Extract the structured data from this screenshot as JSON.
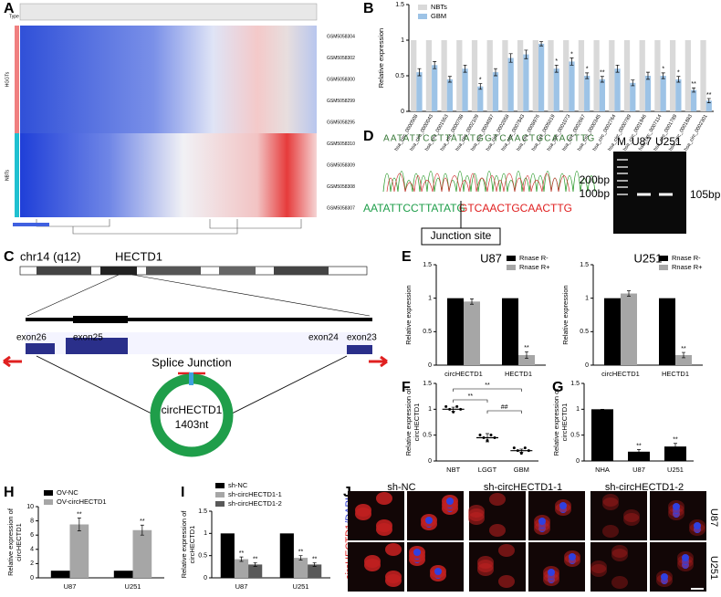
{
  "panels": {
    "labels": [
      "A",
      "B",
      "C",
      "D",
      "E",
      "F",
      "G",
      "H",
      "I",
      "J"
    ]
  },
  "heatmap": {
    "type_label": "Type",
    "groups": [
      "HGGTs",
      "NBTs"
    ],
    "samples": [
      "GSM5058304",
      "GSM5058302",
      "GSM5058300",
      "GSM5058299",
      "GSM5058295",
      "GSM5058310",
      "GSM5058309",
      "GSM5058308",
      "GSM5058307"
    ]
  },
  "sequence": {
    "top": "AATATTCCTTATATGGTCAACTGCAACTTG",
    "left": "AATATTCCTTATATG",
    "right": "GTCAACTGCAACTTG",
    "junction": "Junction site"
  },
  "gel": {
    "lanes": [
      "M",
      "U87",
      "U251"
    ],
    "markers": [
      "200bp",
      "100bp"
    ],
    "product": "105bp"
  },
  "locus": {
    "chromosome": "chr14 (q12)",
    "gene": "HECTD1",
    "exons": [
      "exon26",
      "exon25",
      "exon24",
      "exon23"
    ],
    "splice": "Splice Junction",
    "circ_name": "circHECTD1",
    "circ_length": "1403nt"
  },
  "if": {
    "conditions": [
      "sh-NC",
      "sh-circHECTD1-1",
      "sh-circHECTD1-2"
    ],
    "cells": [
      "U87",
      "U251"
    ],
    "stain": "circHECTD1",
    "stain2": "/DAPI"
  },
  "chart_data": [
    {
      "type": "bar",
      "y_label": [
        "Relative expression"
      ],
      "categories": [
        "hsa_circ_0000508",
        "hsa_circ_0000043",
        "hsa_circ_0001553",
        "hsa_circ_0000798",
        "hsa_circ_0002109",
        "hsa_circ_0004087",
        "hsa_circ_0002058",
        "hsa_circ_0007843",
        "hsa_circ_0008976",
        "hsa_circ_0005019",
        "hsa_circ_0001073",
        "hsa_circ_0002667",
        "hsa_circ_0000345",
        "hsa_circ_0002764",
        "hsa_circ_0000789",
        "hsa_circ_0001946",
        "hsa_circ_0007114",
        "hsa_circ_0001789",
        "hsa_circ_0001883",
        "hsa_circ_0002301"
      ],
      "series": [
        {
          "name": "NBTs",
          "color": "#d9d9d9",
          "values": [
            1,
            1,
            1,
            1,
            1,
            1,
            1,
            1,
            1,
            1,
            1,
            1,
            1,
            1,
            1,
            1,
            1,
            1,
            1,
            1
          ]
        },
        {
          "name": "GBM",
          "color": "#9dc3e6",
          "values": [
            0.55,
            0.65,
            0.45,
            0.6,
            0.35,
            0.55,
            0.75,
            0.8,
            0.95,
            0.6,
            0.7,
            0.5,
            0.45,
            0.6,
            0.4,
            0.5,
            0.5,
            0.45,
            0.3,
            0.15
          ],
          "errors": [
            0.05,
            0.05,
            0.04,
            0.05,
            0.04,
            0.05,
            0.06,
            0.06,
            0.03,
            0.05,
            0.05,
            0.04,
            0.04,
            0.05,
            0.04,
            0.05,
            0.04,
            0.04,
            0.03,
            0.03
          ],
          "significance": [
            null,
            null,
            null,
            null,
            "*",
            null,
            null,
            null,
            null,
            "*",
            "*",
            "*",
            "**",
            null,
            null,
            null,
            "*",
            "*",
            "**",
            "**"
          ]
        }
      ],
      "ylim": [
        0,
        1.5
      ],
      "yticks": [
        0,
        0.5,
        1,
        1.5
      ]
    },
    {
      "type": "bar",
      "title": "U87",
      "y_label": [
        "Relative expression"
      ],
      "categories": [
        "circHECTD1",
        "HECTD1"
      ],
      "series": [
        {
          "name": "Rnase R-",
          "color": "#000000",
          "values": [
            1,
            1
          ]
        },
        {
          "name": "Rnase R+",
          "color": "#a6a6a6",
          "values": [
            0.95,
            0.15
          ],
          "errors": [
            0.04,
            0.05
          ],
          "significance": [
            null,
            "**"
          ]
        }
      ],
      "ylim": [
        0,
        1.5
      ],
      "yticks": [
        0,
        0.5,
        1,
        1.5
      ]
    },
    {
      "type": "bar",
      "title": "U251",
      "y_label": [
        "Relative expression"
      ],
      "categories": [
        "circHECTD1",
        "HECTD1"
      ],
      "series": [
        {
          "name": "Rnase R-",
          "color": "#000000",
          "values": [
            1,
            1
          ]
        },
        {
          "name": "Rnase R+",
          "color": "#a6a6a6",
          "values": [
            1.07,
            0.15
          ],
          "errors": [
            0.04,
            0.04
          ],
          "significance": [
            null,
            "**"
          ]
        }
      ],
      "ylim": [
        0,
        1.5
      ],
      "yticks": [
        0,
        0.5,
        1,
        1.5
      ]
    },
    {
      "type": "dot",
      "y_label": [
        "Relative expression of",
        "circHECTD1"
      ],
      "categories": [
        "NBT",
        "LGGT",
        "GBM"
      ],
      "series": [
        {
          "color": "#000000",
          "values": [
            1,
            0.45,
            0.2
          ],
          "errors": [
            0.04,
            0.08,
            0.03
          ]
        }
      ],
      "annotations": [
        "**",
        "**",
        "##"
      ],
      "ylim": [
        0,
        1.5
      ],
      "yticks": [
        0,
        0.5,
        1,
        1.5
      ]
    },
    {
      "type": "bar",
      "y_label": [
        "Relative expression of",
        "circHECTD1"
      ],
      "categories": [
        "NHA",
        "U87",
        "U251"
      ],
      "series": [
        {
          "color": "#000000",
          "values": [
            1,
            0.18,
            0.28
          ],
          "errors": [
            0,
            0.04,
            0.06
          ],
          "significance": [
            null,
            "**",
            "**"
          ]
        }
      ],
      "ylim": [
        0,
        1.5
      ],
      "yticks": [
        0,
        0.5,
        1,
        1.5
      ]
    },
    {
      "type": "bar",
      "y_label": [
        "Relative expression of",
        "circHECTD1"
      ],
      "categories": [
        "U87",
        "U251"
      ],
      "series": [
        {
          "name": "OV-NC",
          "color": "#000000",
          "values": [
            1,
            1
          ]
        },
        {
          "name": "OV-circHECTD1",
          "color": "#a6a6a6",
          "values": [
            7.5,
            6.7
          ],
          "errors": [
            0.9,
            0.7
          ],
          "significance": [
            "**",
            "**"
          ]
        }
      ],
      "ylim": [
        0,
        10
      ],
      "yticks": [
        0,
        2,
        4,
        6,
        8,
        10
      ]
    },
    {
      "type": "bar",
      "y_label": [
        "Relative expression of",
        "circHECTD1"
      ],
      "categories": [
        "U87",
        "U251"
      ],
      "series": [
        {
          "name": "sh-NC",
          "color": "#000000",
          "values": [
            1,
            1
          ]
        },
        {
          "name": "sh-circHECTD1-1",
          "color": "#a6a6a6",
          "values": [
            0.42,
            0.45
          ],
          "errors": [
            0.05,
            0.05
          ],
          "significance": [
            "**",
            "**"
          ]
        },
        {
          "name": "sh-circHECTD1-2",
          "color": "#595959",
          "values": [
            0.3,
            0.3
          ],
          "errors": [
            0.04,
            0.04
          ],
          "significance": [
            "**",
            "**"
          ]
        }
      ],
      "ylim": [
        0,
        1.5
      ],
      "yticks": [
        0,
        0.5,
        1,
        1.5
      ]
    }
  ]
}
